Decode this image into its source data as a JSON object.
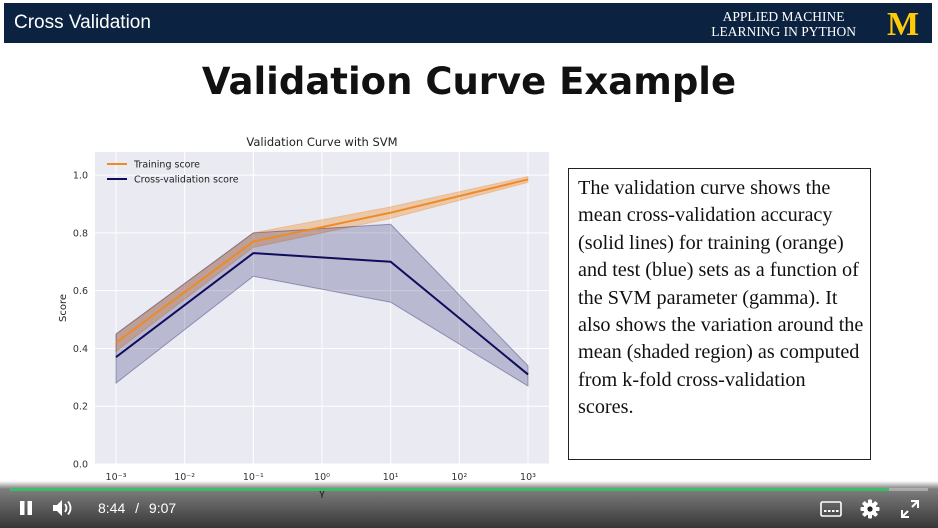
{
  "header": {
    "section_title": "Cross Validation",
    "brand_line1": "APPLIED MACHINE",
    "brand_line2": "LEARNING IN PYTHON",
    "logo_letter": "M",
    "logo_color": "#ffcb05",
    "bar_color": "#0b2341"
  },
  "slide": {
    "title": "Validation Curve Example",
    "callout_text": "The validation curve shows the mean cross-validation accuracy (solid lines) for training (orange) and test (blue) sets as a function of the SVM parameter (gamma).  It also shows the variation around the mean (shaded region) as computed from k-fold cross-validation scores."
  },
  "chart_data": {
    "type": "line",
    "title": "Validation Curve with SVM",
    "xlabel": "γ",
    "ylabel": "Score",
    "xscale": "log",
    "x": [
      0.001,
      0.1,
      10,
      1000
    ],
    "x_ticks": [
      "10⁻³",
      "10⁻²",
      "10⁻¹",
      "10⁰",
      "10¹",
      "10²",
      "10³"
    ],
    "y_ticks": [
      "0.0",
      "0.2",
      "0.4",
      "0.6",
      "0.8",
      "1.0"
    ],
    "ylim": [
      0.0,
      1.08
    ],
    "grid": true,
    "legend_position": "top-left",
    "series": [
      {
        "name": "Training score",
        "color": "#f08a24",
        "values": [
          0.42,
          0.77,
          0.87,
          0.985
        ],
        "lower": [
          0.39,
          0.75,
          0.85,
          0.975
        ],
        "upper": [
          0.45,
          0.8,
          0.89,
          0.995
        ]
      },
      {
        "name": "Cross-validation score",
        "color": "#0f0c5c",
        "values": [
          0.37,
          0.73,
          0.7,
          0.31
        ],
        "lower": [
          0.28,
          0.65,
          0.56,
          0.27
        ],
        "upper": [
          0.45,
          0.8,
          0.83,
          0.34
        ]
      }
    ]
  },
  "player": {
    "current_time": "8:44",
    "separator": "/",
    "duration": "9:07",
    "progress": 0.958,
    "accent_color": "#3fb96a"
  }
}
